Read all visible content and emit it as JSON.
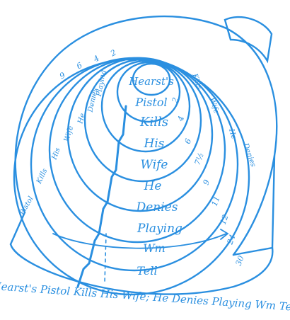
{
  "colors": {
    "ink": "#2a8fe0",
    "background": "#ffffff"
  },
  "headline": {
    "full_text": "Hearst's Pistol Kills His Wife; He Denies Playing Wm Tell",
    "rim_text": "Hearst's Pistol Kills His Wife; He Denies Playing Wm Tell"
  },
  "rings": [
    {
      "word": "Hearst's"
    },
    {
      "word": "Pistol",
      "point": "2"
    },
    {
      "word": "Kills",
      "point": "4"
    },
    {
      "word": "His",
      "point": "6"
    },
    {
      "word": "Wife",
      "point": "7½"
    },
    {
      "word": "He",
      "point": "9"
    },
    {
      "word": "Denies",
      "point": "11"
    },
    {
      "word": "Playing",
      "point": "12"
    },
    {
      "word": "Wm",
      "point": "24"
    },
    {
      "word": "Tell",
      "point": "30"
    }
  ],
  "left_labels": [
    "Pistol",
    "Kills",
    "His",
    "Wife",
    "He",
    "Denies",
    "Playing"
  ],
  "right_labels": [
    "Kills",
    "Wife",
    "He",
    "Denies"
  ],
  "top_numbers": [
    "9",
    "6",
    "4",
    "2"
  ]
}
